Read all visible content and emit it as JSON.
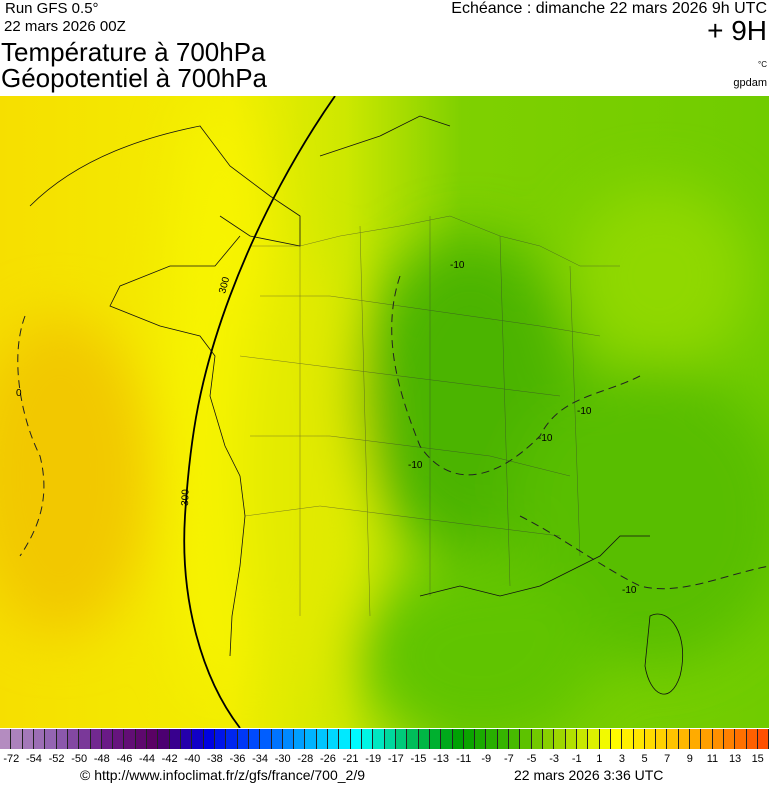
{
  "header": {
    "run": "Run GFS 0.5°",
    "run_date": "22 mars 2026 00Z",
    "title1": "Température à 700hPa",
    "title2": "Géopotentiel à 700hPa",
    "valid": "Echéance : dimanche 22 mars 2026 9h UTC",
    "lead": "+ 9H",
    "unit_temp": "°C",
    "unit_geo": "gpdam"
  },
  "map": {
    "contour_labels": [
      "300",
      "300",
      "-10",
      "-10",
      "-10",
      "-10",
      "-10",
      "0"
    ],
    "colors": {
      "west": "#f4e400",
      "mid": "#dde800",
      "east": "#88d400",
      "core": "#44b000"
    }
  },
  "legend": {
    "labels": [
      "-72",
      "-54",
      "-52",
      "-50",
      "-48",
      "-46",
      "-44",
      "-42",
      "-40",
      "-38",
      "-36",
      "-34",
      "-30",
      "-28",
      "-26",
      "-21",
      "-19",
      "-17",
      "-15",
      "-13",
      "-11",
      "-9",
      "-7",
      "-5",
      "-3",
      "-1",
      "1",
      "3",
      "5",
      "7",
      "9",
      "11",
      "13",
      "15"
    ],
    "color_stops": [
      "#b48cc0",
      "#9060b0",
      "#6a1a88",
      "#580060",
      "#0000e0",
      "#0050ff",
      "#00b0ff",
      "#00ffff",
      "#00c060",
      "#00a000",
      "#40b800",
      "#a0d800",
      "#ffff00",
      "#ffd000",
      "#ff9800",
      "#ff5000"
    ]
  },
  "footer": {
    "credit": "© http://www.infoclimat.fr/z/gfs/france/700_2/9",
    "generated": "22 mars 2026  3:36 UTC"
  }
}
